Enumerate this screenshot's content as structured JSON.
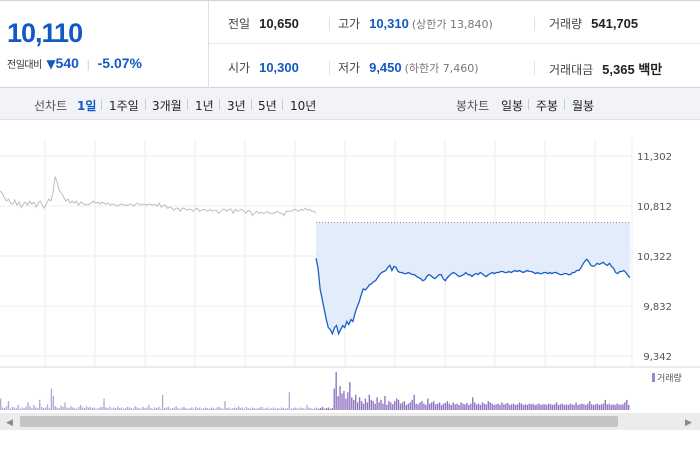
{
  "quote": {
    "price": "10,110",
    "change_label": "전일대비",
    "change_arrow": "▼",
    "change_amount": "540",
    "change_rate": "-5.07%",
    "stats": {
      "prev_close": {
        "label": "전일",
        "value": "10,650"
      },
      "high": {
        "label": "고가",
        "value": "10,310",
        "sub": "(상한가 13,840)"
      },
      "volume": {
        "label": "거래량",
        "value": "541,705"
      },
      "open": {
        "label": "시가",
        "value": "10,300"
      },
      "low": {
        "label": "저가",
        "value": "9,450",
        "sub": "(하한가 7,460)"
      },
      "amount": {
        "label": "거래대금",
        "value": "5,365 백만"
      }
    }
  },
  "toolbar": {
    "line_chart_label": "선차트",
    "line_periods": [
      "1일",
      "1주일",
      "3개월",
      "1년",
      "3년",
      "5년",
      "10년"
    ],
    "active_period": "1일",
    "candle_chart_label": "봉차트",
    "candle_periods": [
      "일봉",
      "주봉",
      "월봉"
    ]
  },
  "colors": {
    "price_blue": "#1259c3",
    "prev_day_line": "#bdbdbd",
    "today_line": "#1a5fc9",
    "fill": "#e3ecfa",
    "volume_bar": "#9c84c8"
  },
  "chart_data": [
    {
      "type": "line",
      "ylim": [
        9342,
        11302
      ],
      "y_ticks": [
        "11,302",
        "10,812",
        "10,322",
        "9,832",
        "9,342"
      ],
      "reference_line": 10650,
      "series": [
        {
          "values": [
            10960,
            10940,
            10900,
            10860,
            10880,
            10840,
            10830,
            10870,
            10820,
            10850,
            10800,
            10830,
            10850,
            10820,
            10860,
            10830,
            10850,
            10800,
            10840,
            10860,
            10820,
            10790,
            10840,
            10880,
            10860,
            10940,
            11100,
            11040,
            10960,
            10940,
            10900,
            10860,
            10880,
            10840,
            10860,
            10840,
            10860,
            10820,
            10850,
            10840,
            10820,
            10830,
            10830,
            10840,
            10860,
            10840,
            10850,
            10830,
            10850,
            10840,
            10830,
            10840,
            10820,
            10830,
            10830,
            10810,
            10820,
            10830,
            10830,
            10820,
            10820,
            10830,
            10830,
            10810,
            10830,
            10840,
            10820,
            10830,
            10830,
            10820,
            10830,
            10830,
            10820,
            10830,
            10810,
            10840,
            10800,
            10820,
            10820,
            10790,
            10800,
            10790,
            10770,
            10790,
            10790,
            10760,
            10790,
            10790,
            10770,
            10780,
            10780,
            10760,
            10780,
            10790,
            10760,
            10770,
            10780,
            10770,
            10760,
            10780,
            10760,
            10770,
            10770,
            10740,
            10760,
            10780,
            10780,
            10760,
            10780,
            10780,
            10740,
            10780,
            10760,
            10770,
            10780,
            10760,
            10740,
            10770,
            10760,
            10720,
            10740,
            10760,
            10740,
            10750,
            10740,
            10740,
            10760,
            10740,
            10740,
            10740,
            10750,
            10760,
            10740,
            10740,
            10720,
            10760,
            10760,
            10760,
            10770,
            10780,
            10770,
            10760,
            10780,
            10770,
            10790,
            10770,
            10780,
            10760,
            10760,
            10740
          ]
        },
        {
          "values": [
            10300,
            10200,
            10000,
            9900,
            9800,
            9700,
            9620,
            9600,
            9560,
            9620,
            9640,
            9560,
            9600,
            9640,
            9620,
            9680,
            9650,
            9700,
            9680,
            9760,
            9820,
            9870,
            9940,
            10000,
            9990,
            10010,
            10040,
            10050,
            10070,
            10080,
            10110,
            10140,
            10160,
            10170,
            10180,
            10210,
            10230,
            10180,
            10220,
            10210,
            10170,
            10160,
            10160,
            10150,
            10150,
            10160,
            10150,
            10140,
            10140,
            10120,
            10110,
            10100,
            10080,
            10090,
            10120,
            10140,
            10130,
            10110,
            10100,
            10120,
            10140,
            10140,
            10100,
            10080,
            10110,
            10130,
            10150,
            10160,
            10150,
            10130,
            10120,
            10130,
            10140,
            10160,
            10140,
            10140,
            10120,
            10140,
            10150,
            10140,
            10160,
            10150,
            10130,
            10120,
            10140,
            10150,
            10160,
            10150,
            10160,
            10160,
            10170,
            10170,
            10160,
            10160,
            10170,
            10160,
            10170,
            10180,
            10170,
            10180,
            10170,
            10160,
            10170,
            10180,
            10170,
            10170,
            10160,
            10150,
            10160,
            10150,
            10150,
            10160,
            10160,
            10150,
            10160,
            10150,
            10160,
            10160,
            10150,
            10140,
            10140,
            10150,
            10150,
            10140,
            10140,
            10160,
            10160,
            10180,
            10180,
            10200,
            10240,
            10270,
            10290,
            10260,
            10230,
            10220,
            10230,
            10250,
            10240,
            10250,
            10260,
            10240,
            10230,
            10250,
            10220,
            10200,
            10160,
            10150,
            10170,
            10170,
            10180,
            10160,
            10130,
            10110
          ]
        }
      ]
    },
    {
      "type": "bar",
      "legend": [
        "거래량"
      ],
      "values": [
        18,
        4,
        3,
        6,
        14,
        2,
        5,
        4,
        3,
        8,
        2,
        4,
        3,
        5,
        12,
        6,
        3,
        8,
        4,
        3,
        16,
        5,
        3,
        4,
        9,
        3,
        34,
        22,
        6,
        4,
        3,
        7,
        5,
        12,
        4,
        3,
        6,
        4,
        3,
        2,
        5,
        8,
        4,
        3,
        6,
        4,
        5,
        3,
        4,
        2,
        3,
        4,
        5,
        18,
        4,
        3,
        5,
        2,
        4,
        3,
        6,
        3,
        4,
        2,
        3,
        5,
        4,
        3,
        2,
        6,
        4,
        3,
        2,
        5,
        3,
        4,
        8,
        3,
        2,
        4,
        3,
        5,
        2,
        24,
        3,
        4,
        5,
        2,
        3,
        4,
        6,
        3,
        2,
        4,
        5,
        3,
        2,
        3,
        4,
        2,
        5,
        3,
        4,
        2,
        3,
        4,
        3,
        2,
        4,
        3,
        2,
        4,
        5,
        3,
        2,
        14,
        3,
        4,
        2,
        3,
        4,
        3,
        6,
        3,
        4,
        2,
        5,
        3,
        2,
        4,
        3,
        2,
        3,
        4,
        5,
        2,
        3,
        4,
        2,
        3,
        4,
        2,
        3,
        2,
        4,
        3,
        2,
        3,
        28,
        2,
        3,
        4,
        3,
        2,
        4,
        3,
        2,
        8,
        4,
        3,
        2,
        3,
        4,
        2,
        3,
        5,
        2,
        3,
        4,
        2,
        3,
        34,
        60,
        22,
        38,
        26,
        30,
        18,
        28,
        44,
        20,
        16,
        24,
        12,
        20,
        14,
        10,
        18,
        12,
        24,
        16,
        14,
        10,
        20,
        12,
        16,
        10,
        22,
        8,
        14,
        12,
        9,
        14,
        18,
        16,
        10,
        12,
        14,
        8,
        10,
        12,
        16,
        24,
        10,
        9,
        12,
        14,
        10,
        8,
        18,
        10,
        12,
        14,
        9,
        10,
        12,
        8,
        10,
        11,
        14,
        10,
        8,
        12,
        9,
        10,
        8,
        12,
        10,
        9,
        11,
        8,
        10,
        20,
        12,
        9,
        10,
        8,
        12,
        10,
        9,
        14,
        12,
        10,
        8,
        9,
        10,
        8,
        12,
        9,
        10,
        11,
        8,
        9,
        10,
        8,
        9,
        12,
        10,
        8,
        9,
        8,
        10,
        9,
        10,
        8,
        9,
        10,
        8,
        9,
        9,
        8,
        10,
        9,
        8,
        9,
        12,
        8,
        9,
        10,
        8,
        9,
        8,
        10,
        9,
        8,
        12,
        8,
        9,
        10,
        9,
        8,
        10,
        14,
        9,
        8,
        9,
        10,
        8,
        9,
        10,
        16,
        9,
        10,
        8,
        9,
        8,
        10,
        9,
        8,
        9,
        12,
        16,
        8
      ]
    }
  ]
}
